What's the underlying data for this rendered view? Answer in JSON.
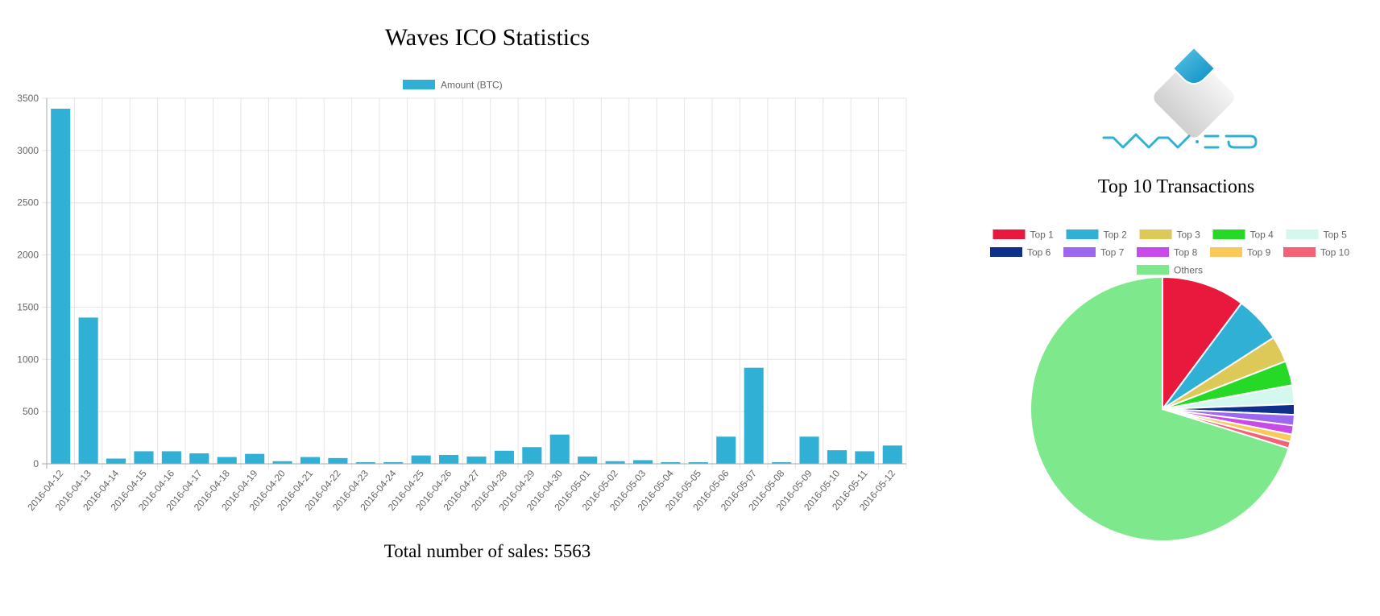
{
  "page": {
    "title": "Waves ICO Statistics",
    "total_label": "Total number of sales: 5563",
    "pie_title": "Top 10 Transactions",
    "logo_text": "WAVES"
  },
  "colors": {
    "bar": "#31b0d5",
    "grid": "#e5e5e5",
    "axis_text": "#666666"
  },
  "chart_data": [
    {
      "type": "bar",
      "title": "Waves ICO Statistics",
      "legend": "Amount (BTC)",
      "legend_position": "top",
      "grid": true,
      "ylim": [
        0,
        3500
      ],
      "yticks": [
        0,
        500,
        1000,
        1500,
        2000,
        2500,
        3000,
        3500
      ],
      "categories": [
        "2016-04-12",
        "2016-04-13",
        "2016-04-14",
        "2016-04-15",
        "2016-04-16",
        "2016-04-17",
        "2016-04-18",
        "2016-04-19",
        "2016-04-20",
        "2016-04-21",
        "2016-04-22",
        "2016-04-23",
        "2016-04-24",
        "2016-04-25",
        "2016-04-26",
        "2016-04-27",
        "2016-04-28",
        "2016-04-29",
        "2016-04-30",
        "2016-05-01",
        "2016-05-02",
        "2016-05-03",
        "2016-05-04",
        "2016-05-05",
        "2016-05-06",
        "2016-05-07",
        "2016-05-08",
        "2016-05-09",
        "2016-05-10",
        "2016-05-11",
        "2016-05-12"
      ],
      "series": [
        {
          "name": "Amount (BTC)",
          "values": [
            3400,
            1400,
            50,
            120,
            120,
            100,
            65,
            95,
            25,
            65,
            55,
            15,
            15,
            80,
            85,
            70,
            125,
            160,
            280,
            70,
            25,
            35,
            15,
            15,
            260,
            920,
            15,
            260,
            130,
            120,
            175
          ]
        }
      ]
    },
    {
      "type": "pie",
      "title": "Top 10 Transactions",
      "legend_position": "top",
      "labels": [
        "Top 1",
        "Top 2",
        "Top 3",
        "Top 4",
        "Top 5",
        "Top 6",
        "Top 7",
        "Top 8",
        "Top 9",
        "Top 10",
        "Others"
      ],
      "colors": [
        "#e8193c",
        "#31b0d5",
        "#dcc957",
        "#27d927",
        "#d4f8ed",
        "#0e2f8a",
        "#9c68f0",
        "#c84ae8",
        "#fbc95b",
        "#f46277",
        "#7ee98c"
      ],
      "values": [
        10.2,
        5.7,
        3.2,
        3.0,
        2.3,
        1.3,
        1.3,
        1.1,
        0.9,
        0.8,
        70.2
      ]
    }
  ]
}
